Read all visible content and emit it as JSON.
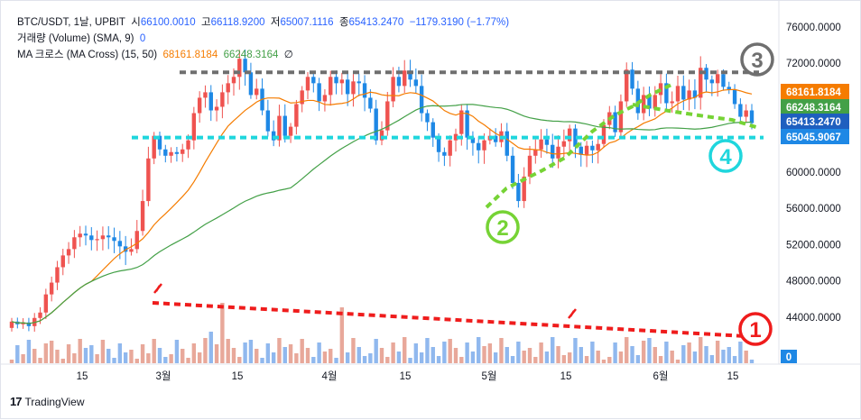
{
  "legend": {
    "symbol": "BTC/USDT, 1날, UPBIT",
    "o_label": "시",
    "o_value": "66100.0010",
    "h_label": "고",
    "h_value": "66118.9200",
    "l_label": "저",
    "l_value": "65007.1116",
    "c_label": "종",
    "c_value": "65413.2470",
    "change": "−1179.3190 (−1.77%)",
    "volume_label": "거래량 (Volume) (SMA, 9)",
    "volume_value": "0",
    "ma_label": "MA 크로스 (MA Cross) (15, 50)",
    "ma_fast_value": "68161.8184",
    "ma_slow_value": "66248.3164",
    "ma_extra": "∅"
  },
  "footer": {
    "brand": "TradingView",
    "logo": "17"
  },
  "colors": {
    "up": "#ef5350",
    "down": "#1e88e5",
    "ma_fast": "#f57c00",
    "ma_slow": "#43a047",
    "vol_up": "#e8a89a",
    "vol_down": "#90b8ee",
    "red_line": "#ef1c1c",
    "green_line": "#76d335",
    "gray_line": "#6f6f6f",
    "cyan_line": "#1fd6dd"
  },
  "chart_data": {
    "type": "candlestick",
    "y_axis": {
      "range": [
        40000,
        78000
      ],
      "ticks": [
        "44000.0000",
        "48000.0000",
        "52000.0000",
        "56000.0000",
        "60000.0000",
        "64000.0000",
        "68000.0000",
        "72000.0000",
        "76000.0000"
      ]
    },
    "x_axis": {
      "ticks": [
        "15",
        "3월",
        "15",
        "4월",
        "15",
        "5월",
        "15",
        "6월",
        "15"
      ]
    },
    "price_labels": [
      {
        "text": "68161.8184",
        "color": "#f57c00",
        "value": 68161.8184
      },
      {
        "text": "66248.3164",
        "color": "#43a047",
        "value": 66248.3164
      },
      {
        "text": "65413.2470",
        "color": "#1e5fbf",
        "value": 65413.247
      },
      {
        "text": "65045.9067",
        "color": "#1e88e5",
        "value": 65045.9067
      }
    ],
    "volume_label": "0",
    "annotations": [
      {
        "id": "1",
        "label": "①",
        "color": "#ef1c1c"
      },
      {
        "id": "2",
        "label": "②",
        "color": "#76d335"
      },
      {
        "id": "3",
        "label": "③",
        "color": "#7a7a7a"
      },
      {
        "id": "4",
        "label": "④",
        "color": "#1fd6dd"
      }
    ],
    "level_lines": [
      {
        "name": "resistance",
        "value": 71000,
        "color": "#6f6f6f"
      },
      {
        "name": "support",
        "value": 63800,
        "color": "#1fd6dd"
      }
    ]
  }
}
